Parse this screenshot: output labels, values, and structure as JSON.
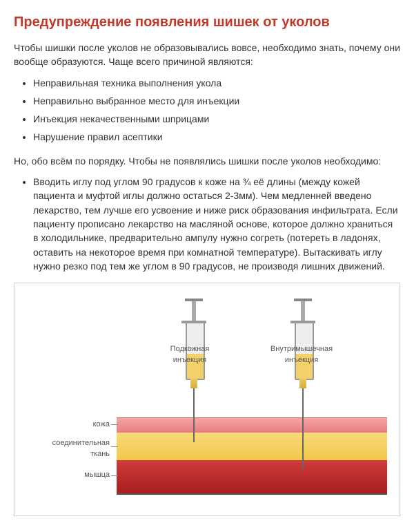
{
  "title": "Предупреждение появления шишек от уколов",
  "intro": "Чтобы шишки после уколов не образовывались вовсе, необходимо знать, почему они вообще образуются. Чаще всего причиной являются:",
  "causes": [
    "Неправильная техника выполнения укола",
    "Неправильно выбранное место для инъекции",
    "Инъекция некачественными шприцами",
    "Нарушение правил асептики"
  ],
  "mid": "Но, обо всём по порядку. Чтобы не появлялись шишки после уколов необходимо:",
  "advice": "Вводить иглу под углом 90 градусов к коже на ¾ её длины (между кожей пациента и муфтой иглы должно остаться 2-3мм). Чем медленней введено лекарство, тем лучше его усвоение и ниже риск образования инфильтрата. Если пациенту прописано лекарство на масляной основе, которое должно храниться в холодильнике, предварительно ампулу нужно согреть (потереть в ладонях, оставить на некоторое время при комнатной температуре). Вытаскивать иглу нужно резко под тем же углом в 90 градусов, не производя лишних движений.",
  "diagram": {
    "syringe1": "Подкожная\nинъекция",
    "syringe2": "Внутримышечная\nинъекция",
    "layers": {
      "skin": "кожа",
      "connect": "соединительная\nткань",
      "muscle": "мышца"
    },
    "colors": {
      "skin": "#e77b7b",
      "connect": "#f2c84a",
      "muscle": "#a81f1f"
    }
  }
}
